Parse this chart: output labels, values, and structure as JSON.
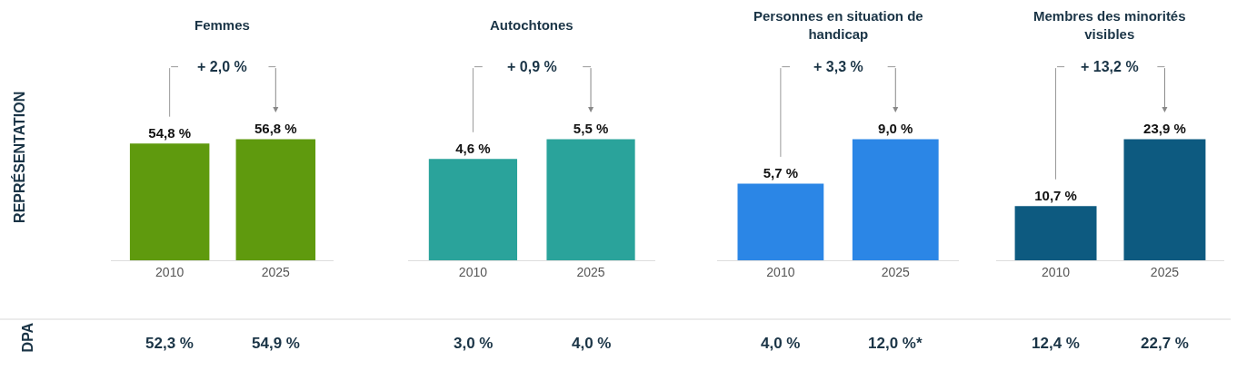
{
  "chart_data": [
    {
      "type": "bar",
      "title": "Femmes",
      "ylabel": "REPRÉSENTATION",
      "categories": [
        "2010",
        "2025"
      ],
      "values": [
        54.8,
        56.8
      ],
      "color": "#5f9a0e",
      "value_labels": [
        "54,8 %",
        "56,8 %"
      ],
      "tick_labels": "x",
      "annotations": [
        "+ 2,0 %",
        "52,3 %",
        "54,9 %",
        "DPA"
      ]
    },
    {
      "type": "bar",
      "title": "Autochtones",
      "categories": [
        "2010",
        "2025"
      ],
      "values": [
        4.6,
        5.5
      ],
      "color": "#2aa39b",
      "value_labels": [
        "4,6 %",
        "5,5 %"
      ],
      "tick_labels": "x",
      "annotations": [
        "+ 0,9 %",
        "3,0 %",
        "4,0 %"
      ]
    },
    {
      "type": "bar",
      "title": "Personnes en situation de handicap",
      "categories": [
        "2010",
        "2025"
      ],
      "values": [
        5.7,
        9.0
      ],
      "color": "#2b86e6",
      "value_labels": [
        "5,7 %",
        "9,0 %"
      ],
      "tick_labels": "x",
      "annotations": [
        "+ 3,3 %",
        "4,0 %",
        "12,0 %*"
      ]
    },
    {
      "type": "bar",
      "title": "Membres des minorités visibles",
      "categories": [
        "2010",
        "2025"
      ],
      "values": [
        10.7,
        23.9
      ],
      "color": "#0d5a80",
      "value_labels": [
        "10,7 %",
        "23,9 %"
      ],
      "tick_labels": "x",
      "annotations": [
        "+ 13,2 %",
        "12,4 %",
        "22,7 %"
      ]
    }
  ]
}
